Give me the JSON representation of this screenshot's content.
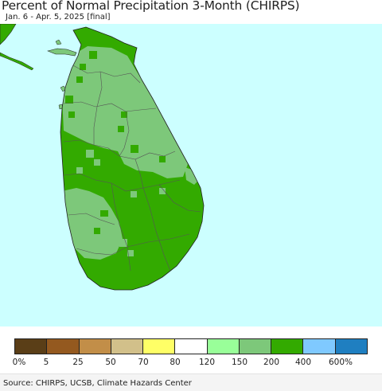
{
  "title": "Percent of Normal Precipitation 3-Month (CHIRPS)",
  "subtitle": "Jan. 6 - Apr. 5, 2025 [final]",
  "source": "Source: CHIRPS, UCSB, Climate Hazards Center",
  "colors": {
    "ocean": "#ccffff",
    "dominant": "#33aa00",
    "secondary": "#7dc87a",
    "border": "#555555"
  },
  "legend": {
    "swatches": [
      "#5a3e17",
      "#94591f",
      "#c28e48",
      "#d2c08a",
      "#ffff66",
      "#ffffff",
      "#99ff99",
      "#7dc87a",
      "#33aa00",
      "#7fc9ff",
      "#1f7fc1"
    ],
    "ticks": [
      "0%",
      "5",
      "25",
      "50",
      "70",
      "80",
      "120",
      "150",
      "200",
      "400",
      "600%"
    ]
  }
}
